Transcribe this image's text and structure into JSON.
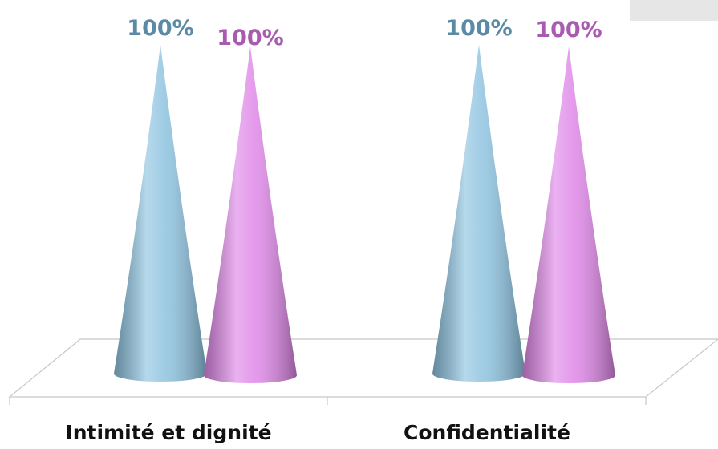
{
  "chart_data": {
    "type": "cone",
    "categories": [
      "Intimité et dignité",
      "Confidentialité"
    ],
    "series": [
      {
        "color": "#8ec3e0",
        "values": [
          100,
          100
        ],
        "value_labels": [
          "100%",
          "100%"
        ]
      },
      {
        "color": "#df88e8",
        "values": [
          100,
          100
        ],
        "value_labels": [
          "100%",
          "100%"
        ]
      }
    ]
  }
}
